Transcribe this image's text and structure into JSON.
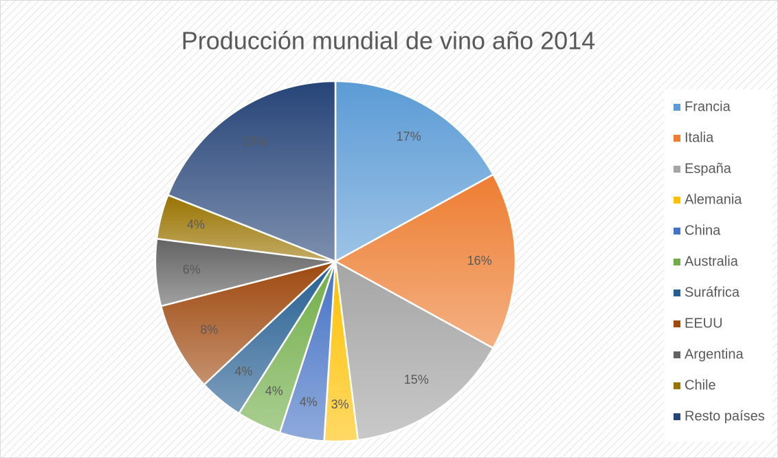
{
  "chart_data": {
    "type": "pie",
    "title": "Producción mundial de vino año 2014",
    "categories": [
      "Francia",
      "Italia",
      "España",
      "Alemania",
      "China",
      "Australia",
      "Suráfrica",
      "EEUU",
      "Argentina",
      "Chile",
      "Resto países"
    ],
    "values": [
      17,
      16,
      15,
      3,
      4,
      4,
      4,
      8,
      6,
      4,
      19
    ],
    "value_labels": [
      "17%",
      "16%",
      "15%",
      "3%",
      "4%",
      "4%",
      "4%",
      "8%",
      "6%",
      "4%",
      "19%"
    ],
    "colors": [
      "#5b9bd5",
      "#ed7d31",
      "#a5a5a5",
      "#ffc000",
      "#4472c4",
      "#70ad47",
      "#255e91",
      "#9e480e",
      "#636363",
      "#997300",
      "#264478"
    ],
    "legend": "right"
  }
}
